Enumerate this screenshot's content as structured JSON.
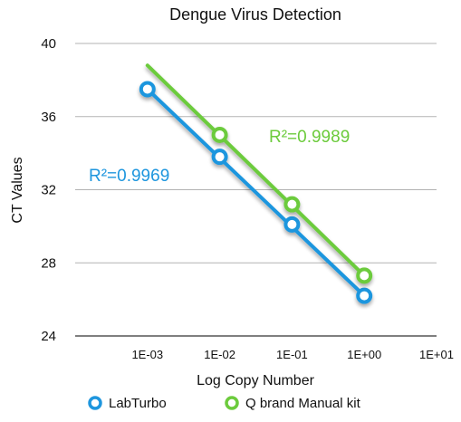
{
  "chart_data": {
    "type": "scatter",
    "title": "Dengue Virus Detection",
    "xlabel": "Log Copy Number",
    "ylabel": "CT Values",
    "x_scale": "log",
    "xlim": [
      0.0001,
      10
    ],
    "ylim": [
      24,
      40
    ],
    "y_ticks": [
      24,
      28,
      32,
      36,
      40
    ],
    "x_ticks": [
      {
        "value": 0.001,
        "label": "1E-03"
      },
      {
        "value": 0.01,
        "label": "1E-02"
      },
      {
        "value": 0.1,
        "label": "1E-01"
      },
      {
        "value": 1,
        "label": "1E+00"
      },
      {
        "value": 10,
        "label": "1E+01"
      }
    ],
    "grid": true,
    "legend_position": "bottom",
    "series": [
      {
        "name": "LabTurbo",
        "color": "#1E96DE",
        "x": [
          0.001,
          0.01,
          0.1,
          1
        ],
        "y": [
          37.5,
          33.8,
          30.1,
          26.2
        ],
        "trendline": {
          "x": [
            0.001,
            1
          ],
          "y": [
            37.5,
            26.2
          ]
        },
        "r2_label": "R²=0.9969"
      },
      {
        "name": "Q brand Manual kit",
        "color": "#6CCB3C",
        "x": [
          0.01,
          0.1,
          1
        ],
        "y": [
          35.0,
          31.2,
          27.3
        ],
        "trendline": {
          "x": [
            0.001,
            1
          ],
          "y": [
            38.8,
            27.3
          ]
        },
        "r2_label": "R²=0.9989"
      }
    ]
  }
}
